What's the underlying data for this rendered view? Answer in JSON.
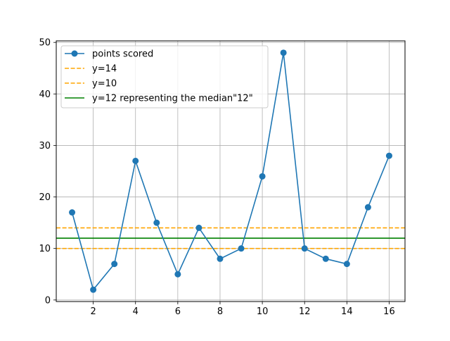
{
  "chart_data": {
    "type": "line",
    "x": [
      1,
      2,
      3,
      4,
      5,
      6,
      7,
      8,
      9,
      10,
      11,
      12,
      13,
      14,
      15,
      16
    ],
    "series": [
      {
        "name": "points scored",
        "values": [
          17,
          2,
          7,
          27,
          15,
          5,
          14,
          8,
          10,
          24,
          48,
          10,
          8,
          7,
          18,
          28
        ],
        "color": "#1f77b4",
        "marker": "circle"
      }
    ],
    "reference_lines": [
      {
        "name": "y=14",
        "y": 14,
        "color": "#ffa500",
        "style": "dashed"
      },
      {
        "name": "y=10",
        "y": 10,
        "color": "#ffa500",
        "style": "dashed"
      },
      {
        "name": "y=12 representing the median\"12\"",
        "y": 12,
        "color": "#008000",
        "style": "solid"
      }
    ],
    "xlim": [
      0.25,
      16.75
    ],
    "ylim": [
      -0.3,
      50.3
    ],
    "xticks": [
      2,
      4,
      6,
      8,
      10,
      12,
      14,
      16
    ],
    "yticks": [
      0,
      10,
      20,
      30,
      40,
      50
    ],
    "grid": true,
    "legend_position": "top-left",
    "title": "",
    "xlabel": "",
    "ylabel": ""
  }
}
